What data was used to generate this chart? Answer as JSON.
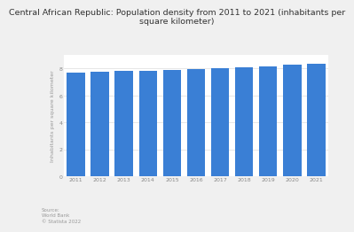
{
  "title": "Central African Republic: Population density from 2011 to 2021 (inhabitants per\nsquare kilometer)",
  "years": [
    "2011",
    "2012",
    "2013",
    "2014",
    "2015",
    "2016",
    "2017",
    "2018",
    "2019",
    "2020",
    "2021"
  ],
  "values": [
    7.68,
    7.74,
    7.81,
    7.86,
    7.9,
    7.98,
    8.02,
    8.09,
    8.18,
    8.28,
    8.38
  ],
  "bar_color": "#3a7fd5",
  "ylabel": "Inhabitants per square kilometer",
  "ylim": [
    0,
    9
  ],
  "yticks": [
    0,
    2,
    4,
    6,
    8
  ],
  "background_color": "#f0f0f0",
  "plot_background": "#ffffff",
  "title_fontsize": 6.8,
  "axis_fontsize": 4.5,
  "tick_fontsize": 4.5,
  "source_text": "Source:\nWorld Bank\n© Statista 2022",
  "source_fontsize": 4.0
}
